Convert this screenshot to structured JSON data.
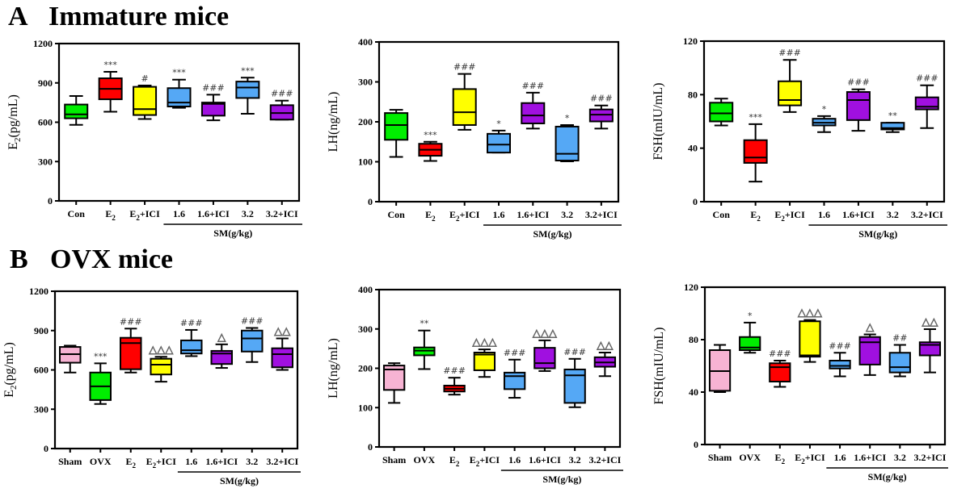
{
  "figure": {
    "sections": [
      {
        "letter": "A",
        "title": "Immature mice"
      },
      {
        "letter": "B",
        "title": "OVX mice"
      }
    ],
    "colors": {
      "pink": "#f7b3d3",
      "green": "#00ee00",
      "red": "#ff0000",
      "yellow": "#ffff00",
      "blue": "#55a8f5",
      "purple": "#a010e0"
    },
    "group_label": "SM(g/kg)"
  },
  "chart_data": [
    {
      "id": "A-E2",
      "type": "boxplot",
      "section": "A",
      "ylabel": "E2(pg/mL)",
      "ylabel_main": "E",
      "ylabel_sub": "2",
      "ylabel_rest": "(pg/mL)",
      "ylim": [
        0,
        1200
      ],
      "yticks": [
        0,
        300,
        600,
        900,
        1200
      ],
      "grid": false,
      "categories": [
        {
          "main": "Con",
          "sub": "",
          "rest": ""
        },
        {
          "main": "E",
          "sub": "2",
          "rest": ""
        },
        {
          "main": "E",
          "sub": "2",
          "rest": "+ICI"
        },
        {
          "main": "1.6",
          "sub": "",
          "rest": ""
        },
        {
          "main": "1.6+ICI",
          "sub": "",
          "rest": ""
        },
        {
          "main": "3.2",
          "sub": "",
          "rest": ""
        },
        {
          "main": "3.2+ICI",
          "sub": "",
          "rest": ""
        }
      ],
      "sm_group_start": 3,
      "boxes": [
        {
          "color": "green",
          "min": 580,
          "q1": 630,
          "median": 660,
          "q3": 735,
          "max": 800,
          "mark": ""
        },
        {
          "color": "red",
          "min": 680,
          "q1": 775,
          "median": 855,
          "q3": 935,
          "max": 985,
          "mark": "***"
        },
        {
          "color": "yellow",
          "min": 625,
          "q1": 655,
          "median": 700,
          "q3": 870,
          "max": 880,
          "mark": "#"
        },
        {
          "color": "blue",
          "min": 710,
          "q1": 720,
          "median": 750,
          "q3": 860,
          "max": 925,
          "mark": "***"
        },
        {
          "color": "purple",
          "min": 615,
          "q1": 650,
          "median": 740,
          "q3": 750,
          "max": 810,
          "mark": "###"
        },
        {
          "color": "blue",
          "min": 665,
          "q1": 785,
          "median": 865,
          "q3": 910,
          "max": 940,
          "mark": "***"
        },
        {
          "color": "purple",
          "min": 620,
          "q1": 620,
          "median": 670,
          "q3": 730,
          "max": 765,
          "mark": "###"
        }
      ]
    },
    {
      "id": "A-LH",
      "type": "boxplot",
      "section": "A",
      "ylabel": "LH(ng/mL)",
      "ylabel_main": "LH(ng/mL)",
      "ylabel_sub": "",
      "ylabel_rest": "",
      "ylim": [
        0,
        400
      ],
      "yticks": [
        0,
        100,
        200,
        300,
        400
      ],
      "grid": false,
      "categories": [
        {
          "main": "Con",
          "sub": "",
          "rest": ""
        },
        {
          "main": "E",
          "sub": "2",
          "rest": ""
        },
        {
          "main": "E",
          "sub": "2",
          "rest": "+ICI"
        },
        {
          "main": "1.6",
          "sub": "",
          "rest": ""
        },
        {
          "main": "1.6+ICI",
          "sub": "",
          "rest": ""
        },
        {
          "main": "3.2",
          "sub": "",
          "rest": ""
        },
        {
          "main": "3.2+ICI",
          "sub": "",
          "rest": ""
        }
      ],
      "sm_group_start": 3,
      "boxes": [
        {
          "color": "green",
          "min": 112,
          "q1": 155,
          "median": 192,
          "q3": 222,
          "max": 230,
          "mark": ""
        },
        {
          "color": "red",
          "min": 102,
          "q1": 115,
          "median": 130,
          "q3": 145,
          "max": 150,
          "mark": "***"
        },
        {
          "color": "yellow",
          "min": 180,
          "q1": 192,
          "median": 224,
          "q3": 282,
          "max": 320,
          "mark": "###"
        },
        {
          "color": "blue",
          "min": 123,
          "q1": 123,
          "median": 143,
          "q3": 170,
          "max": 178,
          "mark": "*"
        },
        {
          "color": "purple",
          "min": 183,
          "q1": 196,
          "median": 216,
          "q3": 247,
          "max": 273,
          "mark": "###"
        },
        {
          "color": "blue",
          "min": 101,
          "q1": 103,
          "median": 120,
          "q3": 188,
          "max": 192,
          "mark": "*"
        },
        {
          "color": "purple",
          "min": 183,
          "q1": 201,
          "median": 218,
          "q3": 231,
          "max": 241,
          "mark": "###"
        }
      ]
    },
    {
      "id": "A-FSH",
      "type": "boxplot",
      "section": "A",
      "ylabel": "FSH(mIU/mL)",
      "ylabel_main": "FSH(mIU/mL)",
      "ylabel_sub": "",
      "ylabel_rest": "",
      "ylim": [
        0,
        120
      ],
      "yticks": [
        0,
        40,
        80,
        120
      ],
      "grid": false,
      "categories": [
        {
          "main": "Con",
          "sub": "",
          "rest": ""
        },
        {
          "main": "E",
          "sub": "2",
          "rest": ""
        },
        {
          "main": "E",
          "sub": "2",
          "rest": "+ICI"
        },
        {
          "main": "1.6",
          "sub": "",
          "rest": ""
        },
        {
          "main": "1.6+ICI",
          "sub": "",
          "rest": ""
        },
        {
          "main": "3.2",
          "sub": "",
          "rest": ""
        },
        {
          "main": "3.2+ICI",
          "sub": "",
          "rest": ""
        }
      ],
      "sm_group_start": 3,
      "boxes": [
        {
          "color": "green",
          "min": 57,
          "q1": 60,
          "median": 66,
          "q3": 74,
          "max": 77,
          "mark": ""
        },
        {
          "color": "red",
          "min": 15,
          "q1": 29,
          "median": 33,
          "q3": 46,
          "max": 58,
          "mark": "***"
        },
        {
          "color": "yellow",
          "min": 67,
          "q1": 72,
          "median": 76,
          "q3": 90,
          "max": 106,
          "mark": "###"
        },
        {
          "color": "blue",
          "min": 52,
          "q1": 57,
          "median": 59,
          "q3": 62,
          "max": 64,
          "mark": "*"
        },
        {
          "color": "purple",
          "min": 53,
          "q1": 61,
          "median": 76,
          "q3": 82,
          "max": 84,
          "mark": "###"
        },
        {
          "color": "blue",
          "min": 52,
          "q1": 54,
          "median": 55,
          "q3": 59,
          "max": 59,
          "mark": "**"
        },
        {
          "color": "purple",
          "min": 55,
          "q1": 69,
          "median": 71,
          "q3": 78,
          "max": 87,
          "mark": "###"
        }
      ]
    },
    {
      "id": "B-E2",
      "type": "boxplot",
      "section": "B",
      "ylabel": "E2(pg/mL)",
      "ylabel_main": "E",
      "ylabel_sub": "2",
      "ylabel_rest": "(pg/mL)",
      "ylim": [
        0,
        1200
      ],
      "yticks": [
        0,
        300,
        600,
        900,
        1200
      ],
      "grid": false,
      "categories": [
        {
          "main": "Sham",
          "sub": "",
          "rest": ""
        },
        {
          "main": "OVX",
          "sub": "",
          "rest": ""
        },
        {
          "main": "E",
          "sub": "2",
          "rest": ""
        },
        {
          "main": "E",
          "sub": "2",
          "rest": "+ICI"
        },
        {
          "main": "1.6",
          "sub": "",
          "rest": ""
        },
        {
          "main": "1.6+ICI",
          "sub": "",
          "rest": ""
        },
        {
          "main": "3.2",
          "sub": "",
          "rest": ""
        },
        {
          "main": "3.2+ICI",
          "sub": "",
          "rest": ""
        }
      ],
      "sm_group_start": 4,
      "boxes": [
        {
          "color": "pink",
          "min": 580,
          "q1": 655,
          "median": 720,
          "q3": 775,
          "max": 785,
          "mark": ""
        },
        {
          "color": "green",
          "min": 340,
          "q1": 370,
          "median": 475,
          "q3": 580,
          "max": 650,
          "mark": "***"
        },
        {
          "color": "red",
          "min": 580,
          "q1": 605,
          "median": 805,
          "q3": 845,
          "max": 915,
          "mark": "###"
        },
        {
          "color": "yellow",
          "min": 510,
          "q1": 565,
          "median": 640,
          "q3": 685,
          "max": 700,
          "mark": "△△△"
        },
        {
          "color": "blue",
          "min": 705,
          "q1": 725,
          "median": 750,
          "q3": 825,
          "max": 905,
          "mark": "###"
        },
        {
          "color": "purple",
          "min": 615,
          "q1": 645,
          "median": 725,
          "q3": 745,
          "max": 795,
          "mark": "△"
        },
        {
          "color": "blue",
          "min": 660,
          "q1": 740,
          "median": 840,
          "q3": 900,
          "max": 920,
          "mark": "###"
        },
        {
          "color": "purple",
          "min": 600,
          "q1": 620,
          "median": 720,
          "q3": 765,
          "max": 840,
          "mark": "△△"
        }
      ]
    },
    {
      "id": "B-LH",
      "type": "boxplot",
      "section": "B",
      "ylabel": "LH(ng/mL)",
      "ylabel_main": "LH(ng/mL)",
      "ylabel_sub": "",
      "ylabel_rest": "",
      "ylim": [
        0,
        400
      ],
      "yticks": [
        0,
        100,
        200,
        300,
        400
      ],
      "grid": false,
      "categories": [
        {
          "main": "Sham",
          "sub": "",
          "rest": ""
        },
        {
          "main": "OVX",
          "sub": "",
          "rest": ""
        },
        {
          "main": "E",
          "sub": "2",
          "rest": ""
        },
        {
          "main": "E",
          "sub": "2",
          "rest": "+ICI"
        },
        {
          "main": "1.6",
          "sub": "",
          "rest": ""
        },
        {
          "main": "1.6+ICI",
          "sub": "",
          "rest": ""
        },
        {
          "main": "3.2",
          "sub": "",
          "rest": ""
        },
        {
          "main": "3.2+ICI",
          "sub": "",
          "rest": ""
        }
      ],
      "sm_group_start": 4,
      "boxes": [
        {
          "color": "pink",
          "min": 112,
          "q1": 145,
          "median": 197,
          "q3": 207,
          "max": 213,
          "mark": ""
        },
        {
          "color": "green",
          "min": 198,
          "q1": 233,
          "median": 245,
          "q3": 253,
          "max": 296,
          "mark": "**"
        },
        {
          "color": "red",
          "min": 133,
          "q1": 141,
          "median": 148,
          "q3": 156,
          "max": 176,
          "mark": "###"
        },
        {
          "color": "yellow",
          "min": 178,
          "q1": 195,
          "median": 235,
          "q3": 240,
          "max": 248,
          "mark": "△△△"
        },
        {
          "color": "blue",
          "min": 125,
          "q1": 147,
          "median": 180,
          "q3": 189,
          "max": 222,
          "mark": "###"
        },
        {
          "color": "purple",
          "min": 193,
          "q1": 200,
          "median": 213,
          "q3": 252,
          "max": 271,
          "mark": "△△△"
        },
        {
          "color": "blue",
          "min": 101,
          "q1": 112,
          "median": 182,
          "q3": 197,
          "max": 224,
          "mark": "###"
        },
        {
          "color": "purple",
          "min": 180,
          "q1": 204,
          "median": 215,
          "q3": 228,
          "max": 240,
          "mark": "△△"
        }
      ]
    },
    {
      "id": "B-FSH",
      "type": "boxplot",
      "section": "B",
      "ylabel": "FSH(mIU/mL)",
      "ylabel_main": "FSH(mIU/mL)",
      "ylabel_sub": "",
      "ylabel_rest": "",
      "ylim": [
        0,
        120
      ],
      "yticks": [
        0,
        40,
        80,
        120
      ],
      "grid": false,
      "categories": [
        {
          "main": "Sham",
          "sub": "",
          "rest": ""
        },
        {
          "main": "OVX",
          "sub": "",
          "rest": ""
        },
        {
          "main": "E",
          "sub": "2",
          "rest": ""
        },
        {
          "main": "E",
          "sub": "2",
          "rest": "+ICI"
        },
        {
          "main": "1.6",
          "sub": "",
          "rest": ""
        },
        {
          "main": "1.6+ICI",
          "sub": "",
          "rest": ""
        },
        {
          "main": "3.2",
          "sub": "",
          "rest": ""
        },
        {
          "main": "3.2+ICI",
          "sub": "",
          "rest": ""
        }
      ],
      "sm_group_start": 4,
      "boxes": [
        {
          "color": "pink",
          "min": 40,
          "q1": 41,
          "median": 56,
          "q3": 72,
          "max": 76,
          "mark": ""
        },
        {
          "color": "green",
          "min": 70,
          "q1": 72,
          "median": 74,
          "q3": 82,
          "max": 93,
          "mark": "*"
        },
        {
          "color": "red",
          "min": 44,
          "q1": 48,
          "median": 59,
          "q3": 62,
          "max": 64,
          "mark": "###"
        },
        {
          "color": "yellow",
          "min": 63,
          "q1": 67,
          "median": 68,
          "q3": 94,
          "max": 95,
          "mark": "△△△"
        },
        {
          "color": "blue",
          "min": 52,
          "q1": 58,
          "median": 60,
          "q3": 64,
          "max": 70,
          "mark": "###"
        },
        {
          "color": "purple",
          "min": 53,
          "q1": 61,
          "median": 78,
          "q3": 82,
          "max": 84,
          "mark": "△"
        },
        {
          "color": "blue",
          "min": 52,
          "q1": 55,
          "median": 59,
          "q3": 70,
          "max": 76,
          "mark": "##"
        },
        {
          "color": "purple",
          "min": 55,
          "q1": 68,
          "median": 76,
          "q3": 78,
          "max": 88,
          "mark": "△△"
        }
      ]
    }
  ]
}
